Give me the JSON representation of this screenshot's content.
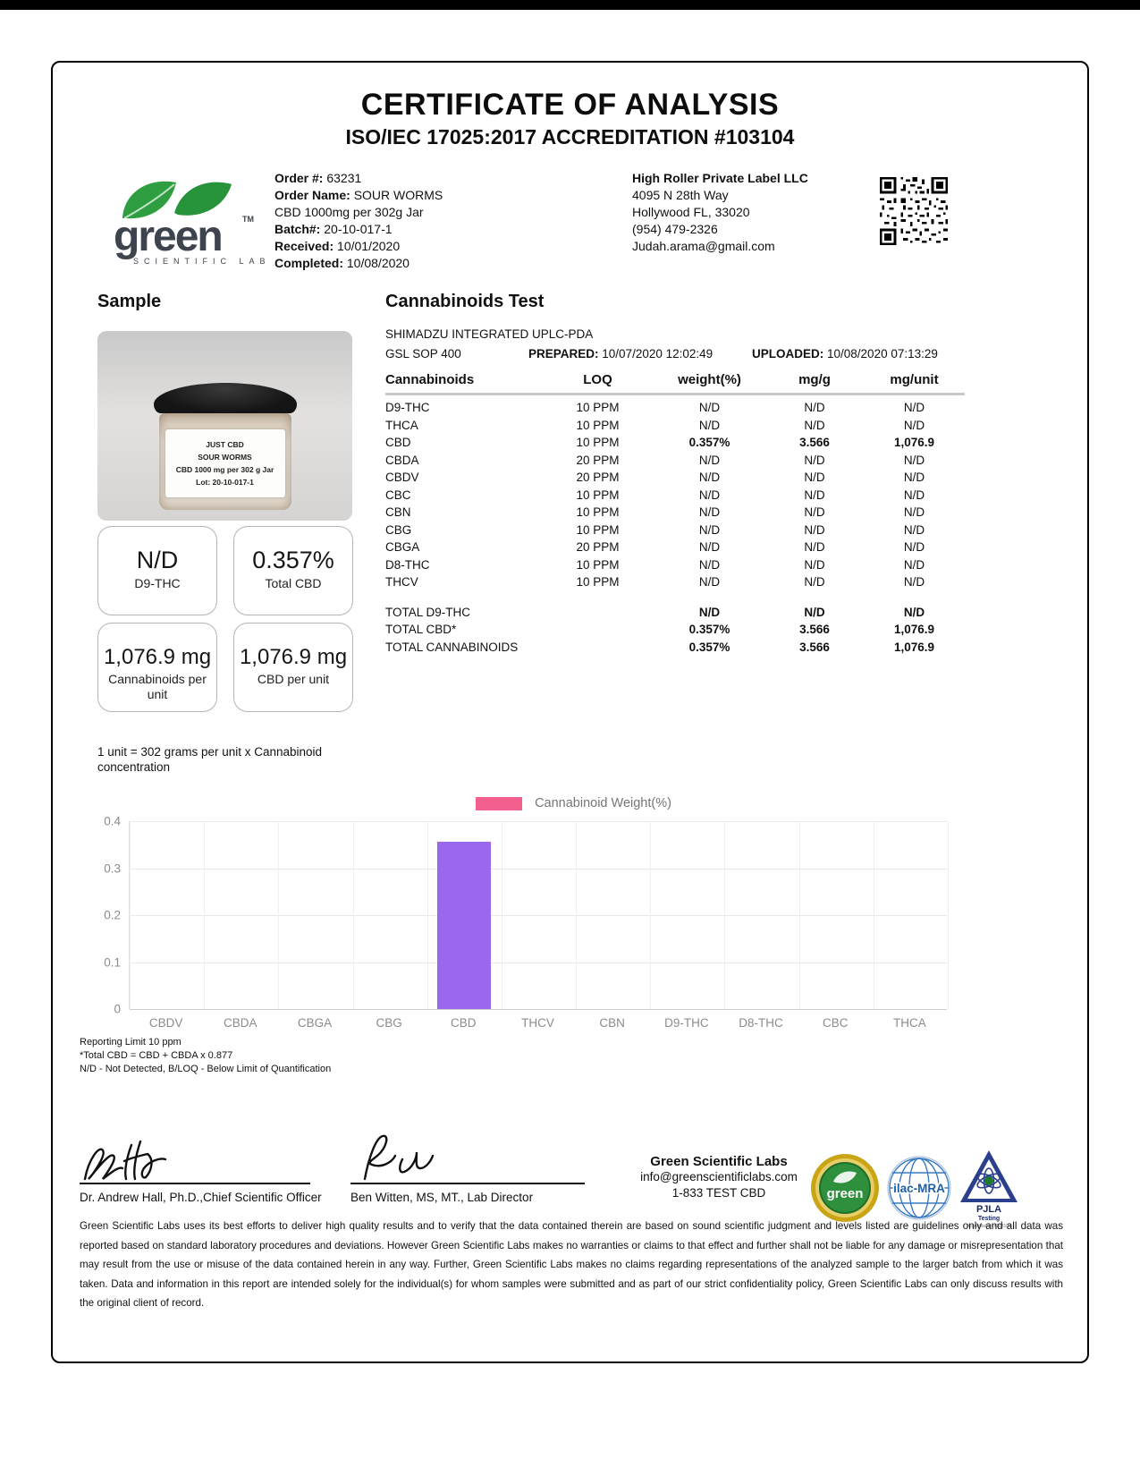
{
  "page": {
    "title": "CERTIFICATE OF ANALYSIS",
    "subtitle": "ISO/IEC 17025:2017 ACCREDITATION #103104"
  },
  "lab_logo": {
    "word": "green",
    "tm": "TM",
    "tagline": "SCIENTIFIC LABS"
  },
  "order": {
    "lines": [
      {
        "label": "Order #:",
        "value": "63231"
      },
      {
        "label": "Order Name:",
        "value": "SOUR WORMS"
      },
      {
        "label": "",
        "value": "CBD 1000mg per 302g Jar"
      },
      {
        "label": "Batch#:",
        "value": "20-10-017-1"
      },
      {
        "label": "Received:",
        "value": "10/01/2020"
      },
      {
        "label": "Completed:",
        "value": "10/08/2020"
      }
    ]
  },
  "client": {
    "lines": [
      "High Roller Private Label LLC",
      "4095 N 28th Way",
      "Hollywood FL, 33020",
      "(954) 479-2326",
      "Judah.arama@gmail.com"
    ]
  },
  "sample": {
    "heading": "Sample",
    "jar_label_lines": [
      "JUST CBD",
      "SOUR WORMS",
      "CBD 1000 mg per 302 g Jar",
      "Lot: 20-10-017-1"
    ],
    "result_boxes": [
      {
        "value": "N/D",
        "label": "D9-THC",
        "small": false
      },
      {
        "value": "0.357%",
        "label": "Total CBD",
        "small": false
      },
      {
        "value": "1,076.9 mg",
        "label": "Cannabinoids per unit",
        "small": true
      },
      {
        "value": "1,076.9 mg",
        "label": "CBD per unit",
        "small": true
      }
    ],
    "unit_note": "1 unit = 302 grams per unit x Cannabinoid concentration"
  },
  "test": {
    "heading": "Cannabinoids Test",
    "instrument": "SHIMADZU INTEGRATED UPLC-PDA",
    "sop": "GSL SOP 400",
    "prepared_label": "PREPARED:",
    "prepared": "10/07/2020 12:02:49",
    "uploaded_label": "UPLOADED:",
    "uploaded": "10/08/2020 07:13:29",
    "columns": [
      "Cannabinoids",
      "LOQ",
      "weight(%)",
      "mg/g",
      "mg/unit"
    ],
    "rows": [
      {
        "name": "D9-THC",
        "loq": "10 PPM",
        "weight": "N/D",
        "mgg": "N/D",
        "mgunit": "N/D",
        "strong": false
      },
      {
        "name": "THCA",
        "loq": "10 PPM",
        "weight": "N/D",
        "mgg": "N/D",
        "mgunit": "N/D",
        "strong": false
      },
      {
        "name": "CBD",
        "loq": "10 PPM",
        "weight": "0.357%",
        "mgg": "3.566",
        "mgunit": "1,076.9",
        "strong": true
      },
      {
        "name": "CBDA",
        "loq": "20 PPM",
        "weight": "N/D",
        "mgg": "N/D",
        "mgunit": "N/D",
        "strong": false
      },
      {
        "name": "CBDV",
        "loq": "20 PPM",
        "weight": "N/D",
        "mgg": "N/D",
        "mgunit": "N/D",
        "strong": false
      },
      {
        "name": "CBC",
        "loq": "10 PPM",
        "weight": "N/D",
        "mgg": "N/D",
        "mgunit": "N/D",
        "strong": false
      },
      {
        "name": "CBN",
        "loq": "10 PPM",
        "weight": "N/D",
        "mgg": "N/D",
        "mgunit": "N/D",
        "strong": false
      },
      {
        "name": "CBG",
        "loq": "10 PPM",
        "weight": "N/D",
        "mgg": "N/D",
        "mgunit": "N/D",
        "strong": false
      },
      {
        "name": "CBGA",
        "loq": "20 PPM",
        "weight": "N/D",
        "mgg": "N/D",
        "mgunit": "N/D",
        "strong": false
      },
      {
        "name": "D8-THC",
        "loq": "10 PPM",
        "weight": "N/D",
        "mgg": "N/D",
        "mgunit": "N/D",
        "strong": false
      },
      {
        "name": "THCV",
        "loq": "10 PPM",
        "weight": "N/D",
        "mgg": "N/D",
        "mgunit": "N/D",
        "strong": false
      }
    ],
    "totals": [
      {
        "name": "TOTAL D9-THC",
        "weight": "N/D",
        "mgg": "N/D",
        "mgunit": "N/D"
      },
      {
        "name": "TOTAL CBD*",
        "weight": "0.357%",
        "mgg": "3.566",
        "mgunit": "1,076.9"
      },
      {
        "name": "TOTAL CANNABINOIDS",
        "weight": "0.357%",
        "mgg": "3.566",
        "mgunit": "1,076.9"
      }
    ]
  },
  "chart_data": {
    "type": "bar",
    "title": "",
    "legend": "Cannabinoid Weight(%)",
    "legend_position": "top",
    "legend_swatch_color": "#F4608E",
    "bar_color": "#9A67EE",
    "categories": [
      "CBDV",
      "CBDA",
      "CBGA",
      "CBG",
      "CBD",
      "THCV",
      "CBN",
      "D9-THC",
      "D8-THC",
      "CBC",
      "THCA"
    ],
    "values": [
      0,
      0,
      0,
      0,
      0.357,
      0,
      0,
      0,
      0,
      0,
      0
    ],
    "xlabel": "",
    "ylabel": "",
    "ylim": [
      0,
      0.4
    ],
    "yticks": [
      0,
      0.1,
      0.2,
      0.3,
      0.4
    ],
    "grid": true
  },
  "notes": [
    "Reporting Limit 10 ppm",
    "*Total CBD = CBD + CBDA x 0.877",
    "N/D - Not Detected, B/LOQ - Below Limit of Quantification"
  ],
  "signatures": [
    {
      "who": "Dr. Andrew Hall, Ph.D.,Chief Scientific Officer"
    },
    {
      "who": "Ben Witten, MS, MT., Lab Director"
    }
  ],
  "contact": {
    "name": "Green Scientific Labs",
    "email": "info@greenscientificlabs.com",
    "phone": "1-833 TEST CBD"
  },
  "badges": {
    "green_badge_word": "green",
    "ilac_label": "ilac-MRA",
    "pjla_label": "PJLA",
    "pjla_sub": "Testing",
    "pjla_accreditation": "Accreditation #103104"
  },
  "disclaimer": "Green Scientific Labs uses its best efforts to deliver high quality results and to verify that the data contained therein are based on sound scientific judgment and levels listed are guidelines only and all data was reported based on standard laboratory procedures and deviations. However Green Scientific Labs makes no warranties or claims to that effect and further shall not be liable for any damage or misrepresentation that may result from the use or misuse of the data contained herein in any way. Further, Green Scientific Labs makes no claims regarding representations of the analyzed sample to the larger batch from which it was taken. Data and information in this report are intended solely for the individual(s) for whom samples were submitted and as part of our strict confidentiality policy, Green Scientific Labs can only discuss results with the original client of record."
}
